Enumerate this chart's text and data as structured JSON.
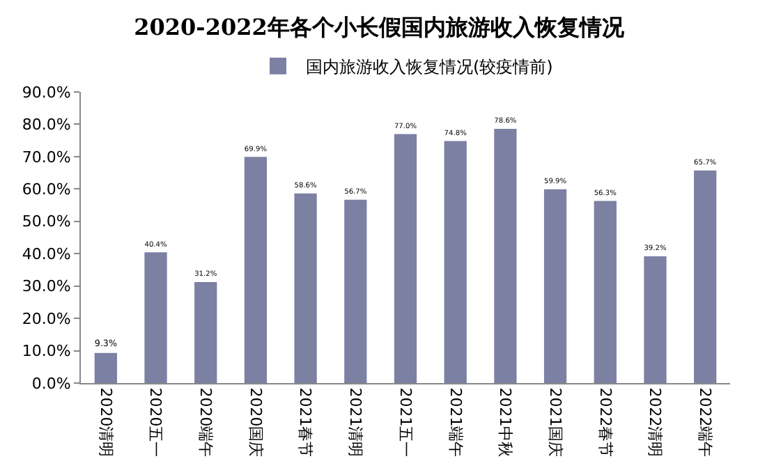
{
  "chart_data": {
    "type": "bar",
    "title": "2020-2022年各个小长假国内旅游收入恢复情况",
    "categories": [
      "2020清明",
      "2020五一",
      "2020端午",
      "2020国庆",
      "2021春节",
      "2021清明",
      "2021五一",
      "2021端午",
      "2021中秋",
      "2021国庆",
      "2022春节",
      "2022清明",
      "2022端午"
    ],
    "series": [
      {
        "name": "国内旅游收入恢复情况(较疫情前)",
        "color": "#7c80a3",
        "values": [
          9.3,
          40.4,
          31.2,
          69.9,
          58.6,
          56.7,
          77.0,
          74.8,
          78.6,
          59.9,
          56.3,
          39.2,
          65.7
        ],
        "value_labels": [
          "9.3%",
          "40.4%",
          "31.2%",
          "69.9%",
          "58.6%",
          "56.7%",
          "77.0%",
          "74.8%",
          "78.6%",
          "59.9%",
          "56.3%",
          "39.2%",
          "65.7%"
        ]
      }
    ],
    "ylim": [
      0,
      90
    ],
    "yticks": [
      {
        "value": 0,
        "label": "0.0%"
      },
      {
        "value": 10,
        "label": "10.0%"
      },
      {
        "value": 20,
        "label": "20.0%"
      },
      {
        "value": 30,
        "label": "30.0%"
      },
      {
        "value": 40,
        "label": "40.0%"
      },
      {
        "value": 50,
        "label": "50.0%"
      },
      {
        "value": 60,
        "label": "60.0%"
      },
      {
        "value": 70,
        "label": "70.0%"
      },
      {
        "value": 80,
        "label": "80.0%"
      },
      {
        "value": 90,
        "label": "90.0%"
      }
    ],
    "grid": false,
    "legend": "top"
  }
}
